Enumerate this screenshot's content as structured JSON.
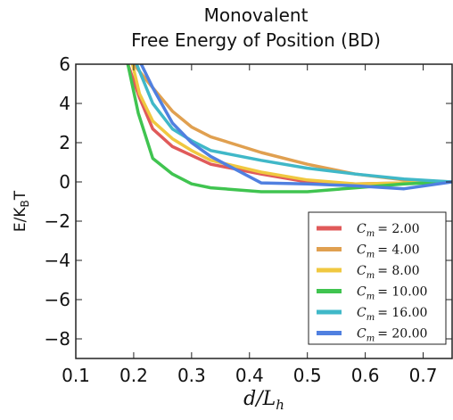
{
  "chart_data": {
    "type": "line",
    "title_lines": [
      "Monovalent",
      "Free Energy of Position (BD)"
    ],
    "xlabel": "d/L",
    "xlabel_sub": "h",
    "ylabel": "E/K",
    "ylabel_sub": "B",
    "ylabel_tail": "T",
    "xlim": [
      0.1,
      0.75
    ],
    "ylim": [
      -9,
      6
    ],
    "xticks": [
      0.1,
      0.2,
      0.3,
      0.4,
      0.5,
      0.6,
      0.7
    ],
    "xtick_labels": [
      "0.1",
      "0.2",
      "0.3",
      "0.4",
      "0.5",
      "0.6",
      "0.7"
    ],
    "yticks": [
      6,
      4,
      2,
      0,
      -2,
      -4,
      -6,
      -8
    ],
    "ytick_labels": [
      "6",
      "4",
      "2",
      "0",
      "−2",
      "−4",
      "−6",
      "−8"
    ],
    "grid": false,
    "legend_position": "lower-right",
    "series": [
      {
        "name": "C_m = 2.00",
        "legend_var": "C",
        "legend_sub": "m",
        "legend_value": "= 2.00",
        "color": "#e05a5a",
        "x": [
          0.19,
          0.21,
          0.233,
          0.267,
          0.333,
          0.42,
          0.5,
          0.583,
          0.667,
          0.75
        ],
        "y": [
          6.0,
          4.3,
          2.7,
          1.8,
          0.9,
          0.4,
          0.0,
          -0.1,
          -0.05,
          0.0
        ]
      },
      {
        "name": "C_m = 4.00",
        "legend_var": "C",
        "legend_sub": "m",
        "legend_value": "= 4.00",
        "color": "#e0a050",
        "x": [
          0.2,
          0.233,
          0.267,
          0.3,
          0.333,
          0.42,
          0.5,
          0.583,
          0.667,
          0.75
        ],
        "y": [
          6.0,
          4.8,
          3.6,
          2.8,
          2.3,
          1.5,
          0.9,
          0.4,
          0.1,
          0.0
        ]
      },
      {
        "name": "C_m = 8.00",
        "legend_var": "C",
        "legend_sub": "m",
        "legend_value": "= 8.00",
        "color": "#f0c840",
        "x": [
          0.198,
          0.21,
          0.233,
          0.267,
          0.3,
          0.333,
          0.42,
          0.5,
          0.583,
          0.667,
          0.75
        ],
        "y": [
          6.0,
          4.5,
          3.1,
          2.2,
          1.6,
          1.1,
          0.5,
          0.1,
          -0.1,
          -0.05,
          0.0
        ]
      },
      {
        "name": "C_m = 10.00",
        "legend_var": "C",
        "legend_sub": "m",
        "legend_value": "= 10.00",
        "color": "#40c450",
        "x": [
          0.19,
          0.208,
          0.233,
          0.267,
          0.3,
          0.333,
          0.42,
          0.5,
          0.583,
          0.667,
          0.75
        ],
        "y": [
          6.0,
          3.5,
          1.2,
          0.4,
          -0.1,
          -0.3,
          -0.5,
          -0.5,
          -0.3,
          -0.1,
          0.0
        ]
      },
      {
        "name": "C_m = 16.00",
        "legend_var": "C",
        "legend_sub": "m",
        "legend_value": "= 16.00",
        "color": "#40b8c8",
        "x": [
          0.205,
          0.233,
          0.267,
          0.3,
          0.333,
          0.42,
          0.5,
          0.583,
          0.667,
          0.75
        ],
        "y": [
          6.0,
          4.0,
          2.7,
          2.1,
          1.6,
          1.1,
          0.7,
          0.4,
          0.15,
          0.0
        ]
      },
      {
        "name": "C_m = 20.00",
        "legend_var": "C",
        "legend_sub": "m",
        "legend_value": "= 20.00",
        "color": "#5080e0",
        "x": [
          0.213,
          0.233,
          0.267,
          0.3,
          0.333,
          0.42,
          0.5,
          0.583,
          0.667,
          0.75
        ],
        "y": [
          6.0,
          4.8,
          3.0,
          2.0,
          1.3,
          -0.05,
          -0.1,
          -0.2,
          -0.35,
          0.0
        ]
      }
    ]
  }
}
